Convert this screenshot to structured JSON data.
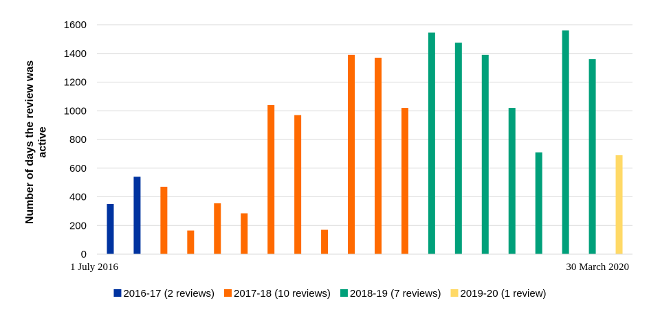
{
  "chart_data": {
    "type": "bar",
    "ylabel": "Number of days the review was active",
    "ylim": [
      0,
      1600
    ],
    "yticks": [
      0,
      200,
      400,
      600,
      800,
      1000,
      1200,
      1400,
      1600
    ],
    "grid": true,
    "legend_position": "bottom",
    "x_start_label": "1 July 2016",
    "x_end_label": "30 March 2020",
    "series": [
      {
        "name": "2016-17 (2  reviews)",
        "color": "#0033a0",
        "values": [
          350,
          540
        ]
      },
      {
        "name": "2017-18 (10 reviews)",
        "color": "#ff6a00",
        "values": [
          470,
          165,
          355,
          285,
          1040,
          970,
          170,
          1390,
          1370,
          1020
        ]
      },
      {
        "name": "2018-19 (7 reviews)",
        "color": "#00a07a",
        "values": [
          1545,
          1475,
          1390,
          1020,
          710,
          1560,
          1360
        ]
      },
      {
        "name": "2019-20 (1 review)",
        "color": "#ffd966",
        "values": [
          690
        ]
      }
    ]
  }
}
